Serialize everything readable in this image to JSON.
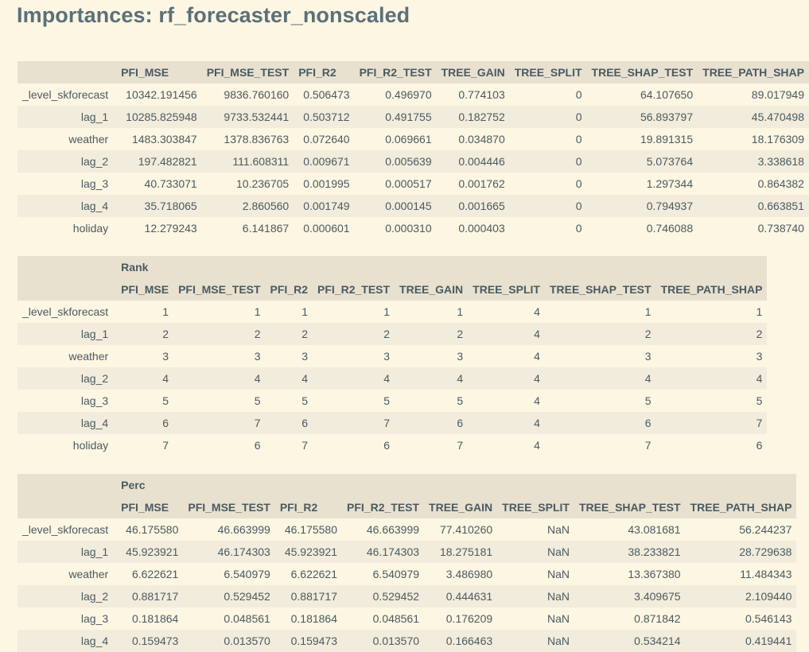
{
  "title": "Importances: rf_forecaster_nonscaled",
  "tables": [
    {
      "caption": "",
      "columns": [
        "PFI_MSE",
        "PFI_MSE_TEST",
        "PFI_R2",
        "PFI_R2_TEST",
        "TREE_GAIN",
        "TREE_SPLIT",
        "TREE_SHAP_TEST",
        "TREE_PATH_SHAP"
      ],
      "rows": [
        {
          "label": "_level_skforecast",
          "values": [
            "10342.191456",
            "9836.760160",
            "0.506473",
            "0.496970",
            "0.774103",
            "0",
            "64.107650",
            "89.017949"
          ]
        },
        {
          "label": "lag_1",
          "values": [
            "10285.825948",
            "9733.532441",
            "0.503712",
            "0.491755",
            "0.182752",
            "0",
            "56.893797",
            "45.470498"
          ]
        },
        {
          "label": "weather",
          "values": [
            "1483.303847",
            "1378.836763",
            "0.072640",
            "0.069661",
            "0.034870",
            "0",
            "19.891315",
            "18.176309"
          ]
        },
        {
          "label": "lag_2",
          "values": [
            "197.482821",
            "111.608311",
            "0.009671",
            "0.005639",
            "0.004446",
            "0",
            "5.073764",
            "3.338618"
          ]
        },
        {
          "label": "lag_3",
          "values": [
            "40.733071",
            "10.236705",
            "0.001995",
            "0.000517",
            "0.001762",
            "0",
            "1.297344",
            "0.864382"
          ]
        },
        {
          "label": "lag_4",
          "values": [
            "35.718065",
            "2.860560",
            "0.001749",
            "0.000145",
            "0.001665",
            "0",
            "0.794937",
            "0.663851"
          ]
        },
        {
          "label": "holiday",
          "values": [
            "12.279243",
            "6.141867",
            "0.000601",
            "0.000310",
            "0.000403",
            "0",
            "0.746088",
            "0.738740"
          ]
        }
      ]
    },
    {
      "caption": "Rank",
      "columns": [
        "PFI_MSE",
        "PFI_MSE_TEST",
        "PFI_R2",
        "PFI_R2_TEST",
        "TREE_GAIN",
        "TREE_SPLIT",
        "TREE_SHAP_TEST",
        "TREE_PATH_SHAP"
      ],
      "rows": [
        {
          "label": "_level_skforecast",
          "values": [
            "1",
            "1",
            "1",
            "1",
            "1",
            "4",
            "1",
            "1"
          ]
        },
        {
          "label": "lag_1",
          "values": [
            "2",
            "2",
            "2",
            "2",
            "2",
            "4",
            "2",
            "2"
          ]
        },
        {
          "label": "weather",
          "values": [
            "3",
            "3",
            "3",
            "3",
            "3",
            "4",
            "3",
            "3"
          ]
        },
        {
          "label": "lag_2",
          "values": [
            "4",
            "4",
            "4",
            "4",
            "4",
            "4",
            "4",
            "4"
          ]
        },
        {
          "label": "lag_3",
          "values": [
            "5",
            "5",
            "5",
            "5",
            "5",
            "4",
            "5",
            "5"
          ]
        },
        {
          "label": "lag_4",
          "values": [
            "6",
            "7",
            "6",
            "7",
            "6",
            "4",
            "6",
            "7"
          ]
        },
        {
          "label": "holiday",
          "values": [
            "7",
            "6",
            "7",
            "6",
            "7",
            "4",
            "7",
            "6"
          ]
        }
      ]
    },
    {
      "caption": "Perc",
      "columns": [
        "PFI_MSE",
        "PFI_MSE_TEST",
        "PFI_R2",
        "PFI_R2_TEST",
        "TREE_GAIN",
        "TREE_SPLIT",
        "TREE_SHAP_TEST",
        "TREE_PATH_SHAP"
      ],
      "rows": [
        {
          "label": "_level_skforecast",
          "values": [
            "46.175580",
            "46.663999",
            "46.175580",
            "46.663999",
            "77.410260",
            "NaN",
            "43.081681",
            "56.244237"
          ]
        },
        {
          "label": "lag_1",
          "values": [
            "45.923921",
            "46.174303",
            "45.923921",
            "46.174303",
            "18.275181",
            "NaN",
            "38.233821",
            "28.729638"
          ]
        },
        {
          "label": "weather",
          "values": [
            "6.622621",
            "6.540979",
            "6.622621",
            "6.540979",
            "3.486980",
            "NaN",
            "13.367380",
            "11.484343"
          ]
        },
        {
          "label": "lag_2",
          "values": [
            "0.881717",
            "0.529452",
            "0.881717",
            "0.529452",
            "0.444631",
            "NaN",
            "3.409675",
            "2.109440"
          ]
        },
        {
          "label": "lag_3",
          "values": [
            "0.181864",
            "0.048561",
            "0.181864",
            "0.048561",
            "0.176209",
            "NaN",
            "0.871842",
            "0.546143"
          ]
        },
        {
          "label": "lag_4",
          "values": [
            "0.159473",
            "0.013570",
            "0.159473",
            "0.013570",
            "0.166463",
            "NaN",
            "0.534214",
            "0.419441"
          ]
        }
      ]
    }
  ]
}
